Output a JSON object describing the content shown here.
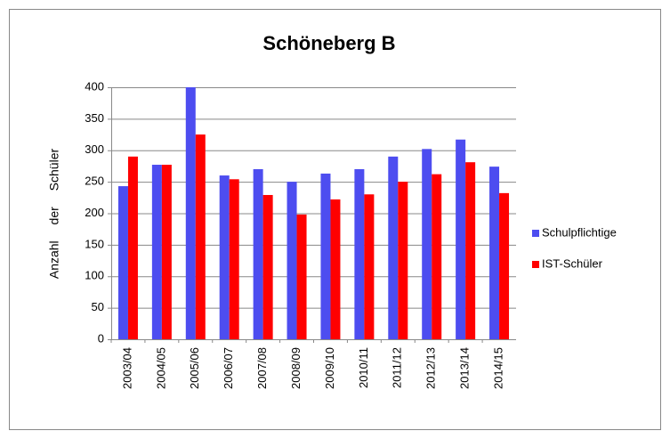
{
  "chart_data": {
    "type": "bar",
    "title": "Schöneberg B",
    "y_label": "Anzahl der Schüler",
    "categories": [
      "2003/04",
      "2004/05",
      "2005/06",
      "2006/07",
      "2007/08",
      "2008/09",
      "2009/10",
      "2010/11",
      "2011/12",
      "2012/13",
      "2013/14",
      "2014/15"
    ],
    "series": [
      {
        "name": "Schulpflichtige",
        "color": "#4d4df0",
        "values": [
          243,
          277,
          400,
          260,
          270,
          250,
          263,
          270,
          290,
          302,
          317,
          274
        ]
      },
      {
        "name": "IST-Schüler",
        "color": "#ff0000",
        "values": [
          290,
          277,
          325,
          254,
          229,
          198,
          222,
          230,
          250,
          262,
          281,
          232
        ]
      }
    ],
    "ylim": [
      0,
      400
    ],
    "yticks": [
      0,
      50,
      100,
      150,
      200,
      250,
      300,
      350,
      400
    ],
    "grid": true,
    "legend": "right"
  }
}
